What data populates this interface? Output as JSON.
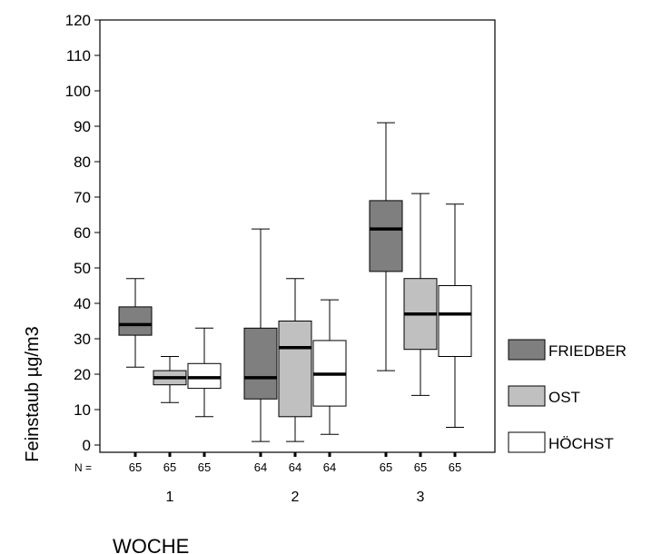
{
  "chart_data": {
    "type": "boxplot",
    "title": "",
    "xlabel": "WOCHE",
    "ylabel": "Feinstaub µg/m3",
    "ylim": [
      0,
      120
    ],
    "yticks": [
      0,
      10,
      20,
      30,
      40,
      50,
      60,
      70,
      80,
      90,
      100,
      110,
      120
    ],
    "categories": [
      "1",
      "2",
      "3"
    ],
    "n_label": "N =",
    "legend_position": "right",
    "grid": false,
    "series": [
      {
        "name": "FRIEDBER",
        "color": "#7f7f7f",
        "n": [
          "65",
          "64",
          "65"
        ],
        "boxes": [
          {
            "min": 22,
            "q1": 31,
            "median": 34,
            "q3": 39,
            "max": 47
          },
          {
            "min": 1,
            "q1": 13,
            "median": 19,
            "q3": 33,
            "max": 61
          },
          {
            "min": 21,
            "q1": 49,
            "median": 61,
            "q3": 69,
            "max": 91
          }
        ]
      },
      {
        "name": "OST",
        "color": "#c0c0c0",
        "n": [
          "65",
          "64",
          "65"
        ],
        "boxes": [
          {
            "min": 12,
            "q1": 17,
            "median": 19,
            "q3": 21,
            "max": 25
          },
          {
            "min": 1,
            "q1": 8,
            "median": 27.5,
            "q3": 35,
            "max": 47
          },
          {
            "min": 14,
            "q1": 27,
            "median": 37,
            "q3": 47,
            "max": 71
          }
        ]
      },
      {
        "name": "HÖCHST",
        "color": "#ffffff",
        "n": [
          "65",
          "64",
          "65"
        ],
        "boxes": [
          {
            "min": 8,
            "q1": 16,
            "median": 19,
            "q3": 23,
            "max": 33
          },
          {
            "min": 3,
            "q1": 11,
            "median": 20,
            "q3": 29.5,
            "max": 41
          },
          {
            "min": 5,
            "q1": 25,
            "median": 37,
            "q3": 45,
            "max": 68
          }
        ]
      }
    ]
  }
}
